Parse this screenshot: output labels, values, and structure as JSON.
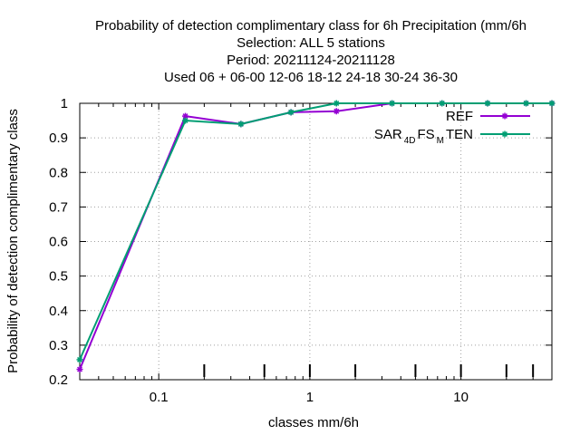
{
  "title_lines": [
    "Probability of detection complimentary class  for 6h Precipitation (mm/6h",
    "Selection: ALL      5 stations",
    "Period: 20211124-20211128",
    "Used  06 + 06-00 12-06 18-12 24-18 30-24 36-30"
  ],
  "colors": {
    "REF": "#9400d3",
    "SAR4DFSMTEN": "#009e73",
    "grid": "#a0a0a0",
    "axis": "#000000"
  },
  "chart_data": {
    "type": "line",
    "title": "Probability of detection complimentary class  for 6h Precipitation (mm/6h",
    "xlabel": "classes mm/6h",
    "ylabel": "Probability of detection complimentary class",
    "xscale": "log",
    "xlim": [
      0.03,
      40
    ],
    "ylim": [
      0.2,
      1
    ],
    "grid": true,
    "legend_position": "top-right",
    "xticks": [
      {
        "value": 0.1,
        "label": "0.1"
      },
      {
        "value": 1,
        "label": "1"
      },
      {
        "value": 10,
        "label": "10"
      }
    ],
    "yticks": [
      {
        "value": 0.2,
        "label": "0.2"
      },
      {
        "value": 0.3,
        "label": "0.3"
      },
      {
        "value": 0.4,
        "label": "0.4"
      },
      {
        "value": 0.5,
        "label": "0.5"
      },
      {
        "value": 0.6,
        "label": "0.6"
      },
      {
        "value": 0.7,
        "label": "0.7"
      },
      {
        "value": 0.8,
        "label": "0.8"
      },
      {
        "value": 0.9,
        "label": "0.9"
      },
      {
        "value": 1.0,
        "label": "1"
      }
    ],
    "class_marks": [
      0.2,
      0.5,
      1,
      2,
      5,
      10,
      20,
      30
    ],
    "series": [
      {
        "name": "REF",
        "legend_parts": [
          {
            "text": "REF",
            "sub": false
          }
        ],
        "x": [
          0.03,
          0.15,
          0.35,
          0.75,
          1.5,
          3.5,
          7.5,
          15,
          27,
          40
        ],
        "y": [
          0.23,
          0.963,
          0.94,
          0.974,
          0.977,
          1.0,
          1.0,
          1.0,
          1.0,
          1.0
        ]
      },
      {
        "name": "SAR4DFSMTEN",
        "legend_parts": [
          {
            "text": "SAR",
            "sub": false
          },
          {
            "text": "4D",
            "sub": true
          },
          {
            "text": "FS",
            "sub": false
          },
          {
            "text": "M",
            "sub": true
          },
          {
            "text": "TEN",
            "sub": false
          }
        ],
        "x": [
          0.03,
          0.15,
          0.35,
          0.75,
          1.5,
          3.5,
          7.5,
          15,
          27,
          40
        ],
        "y": [
          0.258,
          0.95,
          0.94,
          0.974,
          1.0,
          1.0,
          1.0,
          1.0,
          1.0,
          1.0
        ]
      }
    ]
  }
}
